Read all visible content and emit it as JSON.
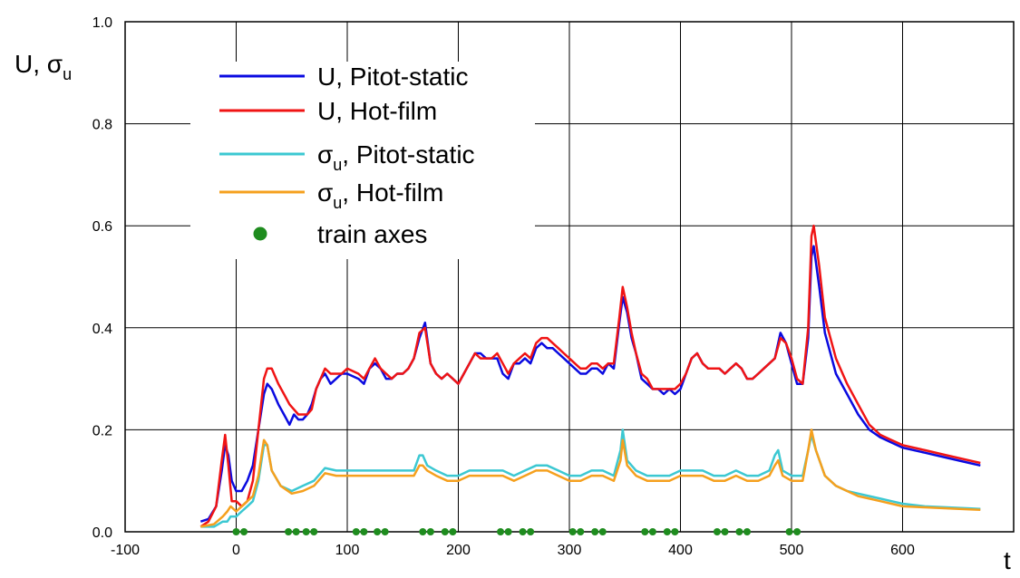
{
  "chart_data": {
    "type": "line",
    "ylabel": "U, σu",
    "xlabel": "t",
    "xlim": [
      -100,
      700
    ],
    "ylim": [
      0.0,
      1.0
    ],
    "x_ticks": [
      "-100",
      "0",
      "100",
      "200",
      "300",
      "400",
      "500",
      "600"
    ],
    "y_ticks": [
      "0.0",
      "0.2",
      "0.4",
      "0.6",
      "0.8",
      "1.0"
    ],
    "grid": true,
    "legend_position": "top-left",
    "legend": [
      {
        "main": "U, Pitot-static",
        "sub": ""
      },
      {
        "main": "U, Hot-film",
        "sub": ""
      },
      {
        "main": "σ",
        "sub": "u",
        "rest": ", Pitot-static"
      },
      {
        "main": "σ",
        "sub": "u",
        "rest": ", Hot-film"
      },
      {
        "main": "train axes",
        "sub": ""
      }
    ],
    "colors": {
      "u_pitot": "#0a0ae0",
      "u_hotfilm": "#f01414",
      "s_pitot": "#3cc8d2",
      "s_hotfilm": "#f5a01e",
      "axes_marker": "#1e8c1e"
    },
    "series": [
      {
        "name": "U, Pitot-static",
        "color": "#0a0ae0",
        "x": [
          -32,
          -25,
          -18,
          -13,
          -10,
          -7,
          -4,
          0,
          5,
          10,
          15,
          20,
          25,
          28,
          32,
          38,
          43,
          48,
          52,
          56,
          60,
          64,
          68,
          72,
          76,
          80,
          85,
          90,
          95,
          100,
          110,
          115,
          120,
          125,
          130,
          135,
          140,
          145,
          150,
          155,
          160,
          165,
          170,
          175,
          180,
          185,
          190,
          195,
          200,
          205,
          210,
          215,
          220,
          225,
          230,
          235,
          240,
          245,
          250,
          255,
          260,
          265,
          270,
          275,
          280,
          285,
          290,
          295,
          300,
          305,
          310,
          315,
          320,
          325,
          330,
          335,
          340,
          345,
          348,
          352,
          356,
          360,
          365,
          370,
          375,
          380,
          385,
          390,
          395,
          400,
          405,
          410,
          415,
          420,
          425,
          430,
          435,
          440,
          445,
          450,
          455,
          460,
          465,
          470,
          475,
          480,
          485,
          490,
          495,
          500,
          505,
          510,
          515,
          518,
          520,
          525,
          530,
          540,
          550,
          560,
          570,
          580,
          590,
          600,
          620,
          640,
          660,
          670
        ],
        "y": [
          0.02,
          0.025,
          0.05,
          0.12,
          0.17,
          0.15,
          0.1,
          0.08,
          0.08,
          0.1,
          0.13,
          0.2,
          0.27,
          0.29,
          0.28,
          0.25,
          0.23,
          0.21,
          0.23,
          0.22,
          0.22,
          0.23,
          0.25,
          0.28,
          0.3,
          0.31,
          0.29,
          0.3,
          0.31,
          0.31,
          0.3,
          0.29,
          0.32,
          0.33,
          0.32,
          0.3,
          0.3,
          0.31,
          0.31,
          0.32,
          0.34,
          0.38,
          0.41,
          0.33,
          0.31,
          0.3,
          0.31,
          0.3,
          0.29,
          0.31,
          0.33,
          0.35,
          0.35,
          0.34,
          0.34,
          0.34,
          0.31,
          0.3,
          0.33,
          0.33,
          0.34,
          0.33,
          0.36,
          0.37,
          0.36,
          0.36,
          0.35,
          0.34,
          0.33,
          0.32,
          0.31,
          0.31,
          0.32,
          0.32,
          0.31,
          0.33,
          0.32,
          0.41,
          0.46,
          0.43,
          0.38,
          0.35,
          0.3,
          0.29,
          0.28,
          0.28,
          0.27,
          0.28,
          0.27,
          0.28,
          0.31,
          0.34,
          0.35,
          0.33,
          0.32,
          0.32,
          0.32,
          0.31,
          0.32,
          0.33,
          0.32,
          0.3,
          0.3,
          0.31,
          0.32,
          0.33,
          0.34,
          0.39,
          0.37,
          0.33,
          0.29,
          0.29,
          0.38,
          0.54,
          0.56,
          0.48,
          0.39,
          0.31,
          0.27,
          0.23,
          0.2,
          0.185,
          0.175,
          0.165,
          0.155,
          0.145,
          0.135,
          0.13
        ]
      },
      {
        "name": "U, Hot-film",
        "color": "#f01414",
        "x": [
          -32,
          -25,
          -18,
          -13,
          -10,
          -7,
          -4,
          0,
          5,
          10,
          15,
          20,
          25,
          28,
          32,
          38,
          43,
          48,
          52,
          56,
          60,
          64,
          68,
          72,
          76,
          80,
          85,
          90,
          95,
          100,
          110,
          115,
          120,
          125,
          130,
          135,
          140,
          145,
          150,
          155,
          160,
          165,
          170,
          175,
          180,
          185,
          190,
          195,
          200,
          205,
          210,
          215,
          220,
          225,
          230,
          235,
          240,
          245,
          250,
          255,
          260,
          265,
          270,
          275,
          280,
          285,
          290,
          295,
          300,
          305,
          310,
          315,
          320,
          325,
          330,
          335,
          340,
          345,
          348,
          352,
          356,
          360,
          365,
          370,
          375,
          380,
          385,
          390,
          395,
          400,
          405,
          410,
          415,
          420,
          425,
          430,
          435,
          440,
          445,
          450,
          455,
          460,
          465,
          470,
          475,
          480,
          485,
          490,
          495,
          500,
          505,
          510,
          515,
          518,
          520,
          525,
          530,
          540,
          550,
          560,
          570,
          580,
          590,
          600,
          620,
          640,
          660,
          670
        ],
        "y": [
          0.01,
          0.02,
          0.05,
          0.14,
          0.19,
          0.13,
          0.06,
          0.06,
          0.05,
          0.06,
          0.1,
          0.2,
          0.3,
          0.32,
          0.32,
          0.29,
          0.27,
          0.25,
          0.24,
          0.23,
          0.23,
          0.23,
          0.24,
          0.28,
          0.3,
          0.32,
          0.31,
          0.31,
          0.31,
          0.32,
          0.31,
          0.3,
          0.32,
          0.34,
          0.32,
          0.31,
          0.3,
          0.31,
          0.31,
          0.32,
          0.34,
          0.39,
          0.4,
          0.33,
          0.31,
          0.3,
          0.31,
          0.3,
          0.29,
          0.31,
          0.33,
          0.35,
          0.34,
          0.34,
          0.34,
          0.35,
          0.33,
          0.31,
          0.33,
          0.34,
          0.35,
          0.34,
          0.37,
          0.38,
          0.38,
          0.37,
          0.36,
          0.35,
          0.34,
          0.33,
          0.32,
          0.32,
          0.33,
          0.33,
          0.32,
          0.33,
          0.33,
          0.42,
          0.48,
          0.44,
          0.39,
          0.35,
          0.31,
          0.3,
          0.28,
          0.28,
          0.28,
          0.28,
          0.28,
          0.29,
          0.31,
          0.34,
          0.35,
          0.33,
          0.32,
          0.32,
          0.32,
          0.31,
          0.32,
          0.33,
          0.32,
          0.3,
          0.3,
          0.31,
          0.32,
          0.33,
          0.34,
          0.38,
          0.37,
          0.34,
          0.3,
          0.29,
          0.4,
          0.58,
          0.6,
          0.52,
          0.42,
          0.34,
          0.29,
          0.25,
          0.21,
          0.19,
          0.18,
          0.17,
          0.16,
          0.15,
          0.14,
          0.135
        ]
      },
      {
        "name": "σu, Pitot-static",
        "color": "#3cc8d2",
        "x": [
          -32,
          -20,
          -12,
          -8,
          -5,
          0,
          5,
          10,
          15,
          20,
          25,
          28,
          32,
          40,
          50,
          60,
          70,
          80,
          90,
          100,
          110,
          120,
          130,
          140,
          150,
          160,
          165,
          168,
          172,
          180,
          190,
          200,
          210,
          220,
          230,
          240,
          250,
          260,
          270,
          280,
          290,
          300,
          310,
          320,
          330,
          340,
          346,
          348,
          352,
          360,
          370,
          380,
          390,
          400,
          410,
          420,
          430,
          440,
          450,
          460,
          470,
          480,
          485,
          488,
          492,
          500,
          510,
          515,
          518,
          522,
          530,
          540,
          550,
          560,
          570,
          580,
          590,
          600,
          620,
          640,
          660,
          670
        ],
        "y": [
          0.01,
          0.01,
          0.02,
          0.02,
          0.03,
          0.03,
          0.04,
          0.05,
          0.06,
          0.1,
          0.17,
          0.17,
          0.12,
          0.09,
          0.08,
          0.09,
          0.1,
          0.125,
          0.12,
          0.12,
          0.12,
          0.12,
          0.12,
          0.12,
          0.12,
          0.12,
          0.15,
          0.15,
          0.13,
          0.12,
          0.11,
          0.11,
          0.12,
          0.12,
          0.12,
          0.12,
          0.11,
          0.12,
          0.13,
          0.13,
          0.12,
          0.11,
          0.11,
          0.12,
          0.12,
          0.11,
          0.16,
          0.2,
          0.14,
          0.12,
          0.11,
          0.11,
          0.11,
          0.12,
          0.12,
          0.12,
          0.11,
          0.11,
          0.12,
          0.11,
          0.11,
          0.12,
          0.15,
          0.16,
          0.12,
          0.11,
          0.11,
          0.16,
          0.19,
          0.16,
          0.11,
          0.09,
          0.08,
          0.075,
          0.07,
          0.065,
          0.06,
          0.055,
          0.05,
          0.048,
          0.046,
          0.045
        ]
      },
      {
        "name": "σu, Hot-film",
        "color": "#f5a01e",
        "x": [
          -32,
          -20,
          -12,
          -8,
          -5,
          0,
          5,
          10,
          15,
          20,
          25,
          28,
          32,
          40,
          50,
          60,
          70,
          80,
          90,
          100,
          110,
          120,
          130,
          140,
          150,
          160,
          165,
          168,
          172,
          180,
          190,
          200,
          210,
          220,
          230,
          240,
          250,
          260,
          270,
          280,
          290,
          300,
          310,
          320,
          330,
          340,
          346,
          348,
          352,
          360,
          370,
          380,
          390,
          400,
          410,
          420,
          430,
          440,
          450,
          460,
          470,
          480,
          485,
          488,
          492,
          500,
          510,
          515,
          518,
          522,
          530,
          540,
          550,
          560,
          570,
          580,
          590,
          600,
          620,
          640,
          660,
          670
        ],
        "y": [
          0.01,
          0.015,
          0.03,
          0.04,
          0.05,
          0.04,
          0.05,
          0.06,
          0.07,
          0.11,
          0.18,
          0.17,
          0.12,
          0.09,
          0.075,
          0.08,
          0.09,
          0.115,
          0.11,
          0.11,
          0.11,
          0.11,
          0.11,
          0.11,
          0.11,
          0.11,
          0.13,
          0.13,
          0.12,
          0.11,
          0.1,
          0.1,
          0.11,
          0.11,
          0.11,
          0.11,
          0.1,
          0.11,
          0.12,
          0.12,
          0.11,
          0.1,
          0.1,
          0.11,
          0.11,
          0.1,
          0.14,
          0.18,
          0.13,
          0.11,
          0.1,
          0.1,
          0.1,
          0.11,
          0.11,
          0.11,
          0.1,
          0.1,
          0.11,
          0.1,
          0.1,
          0.11,
          0.13,
          0.14,
          0.11,
          0.1,
          0.1,
          0.16,
          0.2,
          0.16,
          0.11,
          0.09,
          0.08,
          0.07,
          0.065,
          0.06,
          0.055,
          0.05,
          0.048,
          0.046,
          0.044,
          0.043
        ]
      },
      {
        "name": "train axes",
        "color": "#1e8c1e",
        "type": "scatter",
        "x": [
          0,
          7,
          47,
          54,
          63,
          70,
          108,
          115,
          127,
          134,
          168,
          175,
          188,
          195,
          238,
          245,
          258,
          265,
          303,
          310,
          323,
          330,
          368,
          375,
          388,
          395,
          433,
          440,
          453,
          460,
          498,
          505
        ],
        "y": [
          0,
          0,
          0,
          0,
          0,
          0,
          0,
          0,
          0,
          0,
          0,
          0,
          0,
          0,
          0,
          0,
          0,
          0,
          0,
          0,
          0,
          0,
          0,
          0,
          0,
          0,
          0,
          0,
          0,
          0,
          0,
          0
        ]
      }
    ]
  }
}
